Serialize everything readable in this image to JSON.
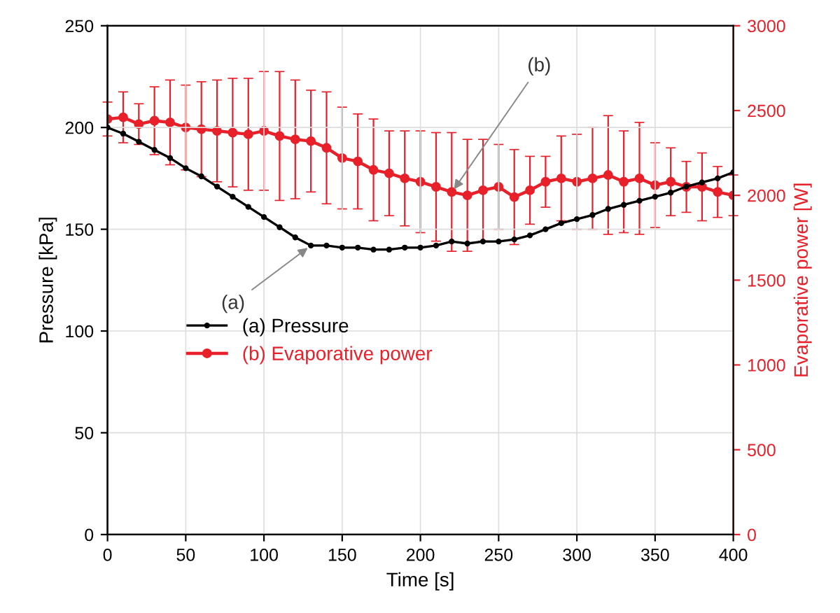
{
  "chart_data": {
    "type": "line",
    "xlabel": "Time [s]",
    "ylabel": "Pressure [kPa]",
    "y2label": "Evaporative power [W]",
    "x": [
      0,
      10,
      20,
      30,
      40,
      50,
      60,
      70,
      80,
      90,
      100,
      110,
      120,
      130,
      140,
      150,
      160,
      170,
      180,
      190,
      200,
      210,
      220,
      230,
      240,
      250,
      260,
      270,
      280,
      290,
      300,
      310,
      320,
      330,
      340,
      350,
      360,
      370,
      380,
      390,
      400
    ],
    "series": [
      {
        "name": "(a) Pressure",
        "color": "#000000",
        "values": [
          200,
          197,
          193,
          189,
          185,
          180,
          176,
          171,
          166,
          161,
          156,
          151,
          146,
          142,
          142,
          141,
          141,
          140,
          140,
          141,
          141,
          142,
          144,
          143,
          144,
          144,
          145,
          147,
          150,
          153,
          155,
          157,
          160,
          162,
          164,
          166,
          168,
          171,
          173,
          175,
          178
        ]
      },
      {
        "name": "(b) Evaporative power",
        "color": "#e8202a",
        "axis": "y2",
        "values": [
          2450,
          2460,
          2420,
          2440,
          2430,
          2400,
          2390,
          2380,
          2370,
          2360,
          2380,
          2350,
          2330,
          2320,
          2280,
          2220,
          2200,
          2150,
          2130,
          2100,
          2080,
          2050,
          2020,
          2000,
          2030,
          2050,
          1990,
          2030,
          2080,
          2100,
          2080,
          2100,
          2120,
          2080,
          2100,
          2060,
          2080,
          2050,
          2050,
          2020,
          2000
        ],
        "errors": [
          100,
          150,
          120,
          200,
          250,
          250,
          280,
          300,
          320,
          330,
          350,
          380,
          350,
          300,
          330,
          300,
          280,
          300,
          250,
          280,
          300,
          320,
          350,
          330,
          300,
          250,
          280,
          200,
          150,
          250,
          280,
          300,
          350,
          300,
          330,
          250,
          200,
          150,
          200,
          150,
          120
        ]
      }
    ],
    "xlim": [
      0,
      400
    ],
    "xticks": [
      0,
      50,
      100,
      150,
      200,
      250,
      300,
      350,
      400
    ],
    "ylim": [
      0,
      250
    ],
    "yticks": [
      0,
      50,
      100,
      150,
      200,
      250
    ],
    "y2lim": [
      0,
      3000
    ],
    "y2ticks": [
      0,
      500,
      1000,
      1500,
      2000,
      2500,
      3000
    ],
    "annotations": [
      {
        "text": "(a)",
        "x": 130,
        "y": 142
      },
      {
        "text": "(b)",
        "x": 220,
        "y": 168
      }
    ],
    "grid": true,
    "legend": "left",
    "marker": "circle",
    "line_style": "solid"
  }
}
